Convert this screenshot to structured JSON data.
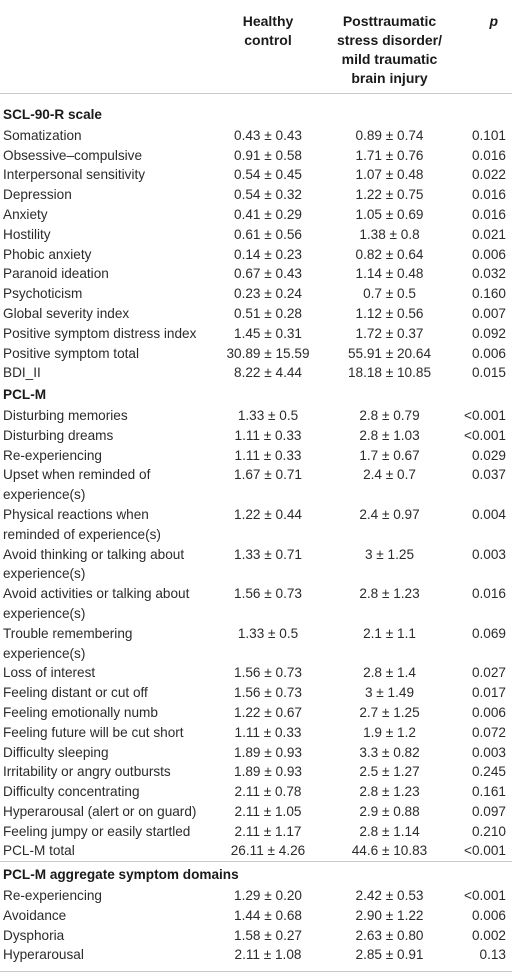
{
  "header": {
    "col_label": "",
    "col_healthy": "Healthy\ncontrol",
    "col_ptsd": "Posttraumatic\nstress disorder/\nmild traumatic\nbrain injury",
    "col_p": "p"
  },
  "rows": [
    {
      "type": "section",
      "label": "SCL-90-R scale"
    },
    {
      "label": "Somatization",
      "hc": "0.43 ± 0.43",
      "ptsd": "0.89 ± 0.74",
      "p": "0.101"
    },
    {
      "label": "Obsessive–compulsive",
      "hc": "0.91 ± 0.58",
      "ptsd": "1.71 ± 0.76",
      "p": "0.016"
    },
    {
      "label": "Interpersonal sensitivity",
      "hc": "0.54 ± 0.45",
      "ptsd": "1.07 ± 0.48",
      "p": "0.022"
    },
    {
      "label": "Depression",
      "hc": "0.54 ± 0.32",
      "ptsd": "1.22 ± 0.75",
      "p": "0.016"
    },
    {
      "label": "Anxiety",
      "hc": "0.41 ± 0.29",
      "ptsd": "1.05 ± 0.69",
      "p": "0.016"
    },
    {
      "label": "Hostility",
      "hc": "0.61 ± 0.56",
      "ptsd": "1.38 ± 0.8",
      "p": "0.021"
    },
    {
      "label": "Phobic anxiety",
      "hc": "0.14 ± 0.23",
      "ptsd": "0.82 ± 0.64",
      "p": "0.006"
    },
    {
      "label": "Paranoid ideation",
      "hc": "0.67 ± 0.43",
      "ptsd": "1.14 ± 0.48",
      "p": "0.032"
    },
    {
      "label": "Psychoticism",
      "hc": "0.23 ± 0.24",
      "ptsd": "0.7 ± 0.5",
      "p": "0.160"
    },
    {
      "label": "Global severity index",
      "hc": "0.51 ± 0.28",
      "ptsd": "1.12 ± 0.56",
      "p": "0.007"
    },
    {
      "label": "Positive symptom distress index",
      "hc": "1.45 ± 0.31",
      "ptsd": "1.72 ± 0.37",
      "p": "0.092"
    },
    {
      "label": "Positive symptom total",
      "hc": "30.89 ± 15.59",
      "ptsd": "55.91 ± 20.64",
      "p": "0.006"
    },
    {
      "label": "BDI_II",
      "hc": "8.22 ± 4.44",
      "ptsd": "18.18 ± 10.85",
      "p": "0.015"
    },
    {
      "type": "section",
      "label": "PCL-M"
    },
    {
      "label": "Disturbing memories",
      "hc": "1.33 ± 0.5",
      "ptsd": "2.8 ± 0.79",
      "p": "<0.001"
    },
    {
      "label": "Disturbing dreams",
      "hc": "1.11 ± 0.33",
      "ptsd": "2.8 ± 1.03",
      "p": "<0.001"
    },
    {
      "label": "Re-experiencing",
      "hc": "1.11 ± 0.33",
      "ptsd": "1.7 ± 0.67",
      "p": "0.029"
    },
    {
      "label": "Upset when reminded of\nexperience(s)",
      "hc": "1.67 ± 0.71",
      "ptsd": "2.4 ± 0.7",
      "p": "0.037"
    },
    {
      "label": "Physical reactions when\nreminded of experience(s)",
      "hc": "1.22 ± 0.44",
      "ptsd": "2.4 ± 0.97",
      "p": "0.004"
    },
    {
      "label": "Avoid thinking or talking about\nexperience(s)",
      "hc": "1.33 ± 0.71",
      "ptsd": "3 ± 1.25",
      "p": "0.003"
    },
    {
      "label": "Avoid activities or talking about\nexperience(s)",
      "hc": "1.56 ± 0.73",
      "ptsd": "2.8 ± 1.23",
      "p": "0.016"
    },
    {
      "label": "Trouble remembering\nexperience(s)",
      "hc": "1.33 ± 0.5",
      "ptsd": "2.1 ± 1.1",
      "p": "0.069"
    },
    {
      "label": "Loss of interest",
      "hc": "1.56 ± 0.73",
      "ptsd": "2.8 ± 1.4",
      "p": "0.027"
    },
    {
      "label": "Feeling distant or cut off",
      "hc": "1.56 ± 0.73",
      "ptsd": "3 ± 1.49",
      "p": "0.017"
    },
    {
      "label": "Feeling emotionally numb",
      "hc": "1.22 ± 0.67",
      "ptsd": "2.7 ± 1.25",
      "p": "0.006"
    },
    {
      "label": "Feeling future will be cut short",
      "hc": "1.11 ± 0.33",
      "ptsd": "1.9 ± 1.2",
      "p": "0.072"
    },
    {
      "label": "Difficulty sleeping",
      "hc": "1.89 ± 0.93",
      "ptsd": "3.3 ± 0.82",
      "p": "0.003"
    },
    {
      "label": "Irritability or angry outbursts",
      "hc": "1.89 ± 0.93",
      "ptsd": "2.5 ± 1.27",
      "p": "0.245"
    },
    {
      "label": "Difficulty concentrating",
      "hc": "2.11 ± 0.78",
      "ptsd": "2.8 ± 1.23",
      "p": "0.161"
    },
    {
      "label": "Hyperarousal (alert or on guard)",
      "hc": "2.11 ± 1.05",
      "ptsd": "2.9 ± 0.88",
      "p": "0.097"
    },
    {
      "label": "Feeling jumpy or easily startled",
      "hc": "2.11 ± 1.17",
      "ptsd": "2.8 ± 1.14",
      "p": "0.210"
    },
    {
      "label": "PCL-M total",
      "hc": "26.11 ± 4.26",
      "ptsd": "44.6 ± 10.83",
      "p": "<0.001"
    },
    {
      "type": "section",
      "label": "PCL-M aggregate symptom domains",
      "rule": true
    },
    {
      "label": "Re-experiencing",
      "hc": "1.29 ± 0.20",
      "ptsd": "2.42 ± 0.53",
      "p": "<0.001"
    },
    {
      "label": "Avoidance",
      "hc": "1.44 ± 0.68",
      "ptsd": "2.90 ± 1.22",
      "p": "0.006"
    },
    {
      "label": "Dysphoria",
      "hc": "1.58 ± 0.27",
      "ptsd": "2.63 ± 0.80",
      "p": "0.002"
    },
    {
      "label": "Hyperarousal",
      "hc": "2.11 ± 1.08",
      "ptsd": "2.85 ± 0.91",
      "p": "0.13"
    }
  ]
}
